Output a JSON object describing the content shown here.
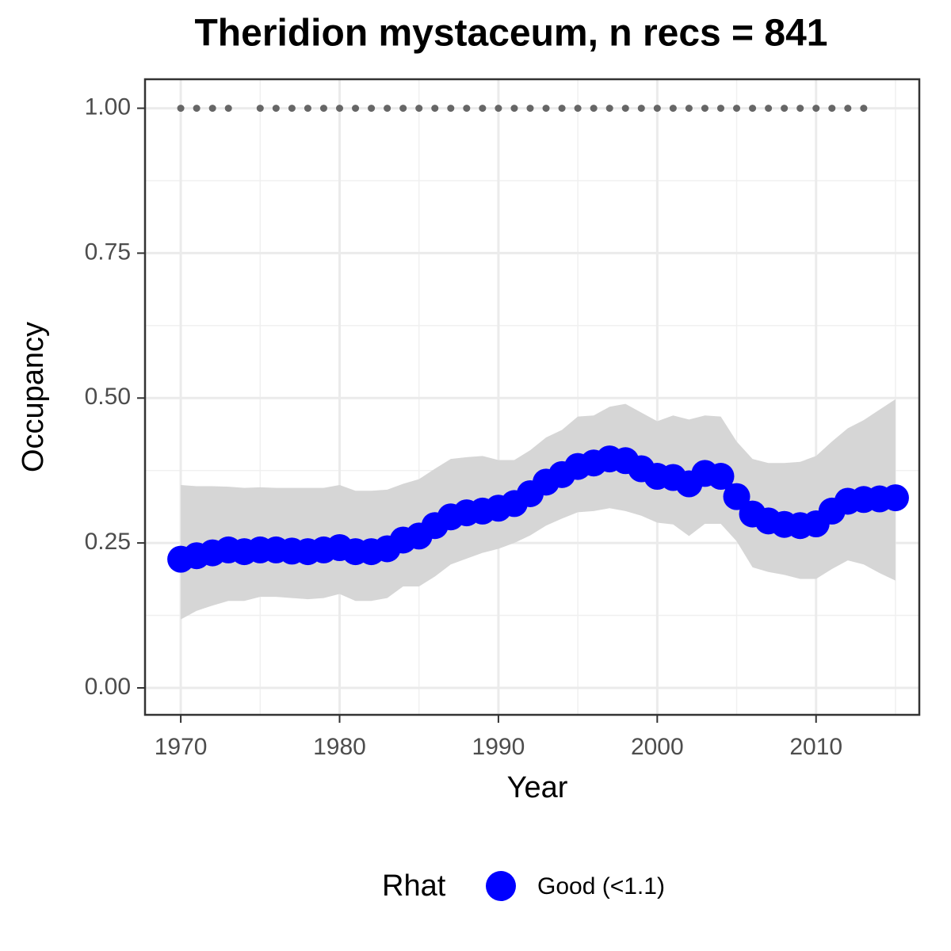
{
  "chart_data": {
    "type": "line",
    "title": "Theridion mystaceum, n recs = 841",
    "x_label": "Year",
    "y_label": "Occupancy",
    "legend_title": "Rhat",
    "legend_position": "bottom",
    "x": [
      1970,
      1971,
      1972,
      1973,
      1974,
      1975,
      1976,
      1977,
      1978,
      1979,
      1980,
      1981,
      1982,
      1983,
      1984,
      1985,
      1986,
      1987,
      1988,
      1989,
      1990,
      1991,
      1992,
      1993,
      1994,
      1995,
      1996,
      1997,
      1998,
      1999,
      2000,
      2001,
      2002,
      2003,
      2004,
      2005,
      2006,
      2007,
      2008,
      2009,
      2010,
      2011,
      2012,
      2013,
      2014,
      2015
    ],
    "series": [
      {
        "name": "Good (<1.1)",
        "color": "#0000ff",
        "values": [
          0.222,
          0.228,
          0.233,
          0.238,
          0.235,
          0.238,
          0.238,
          0.236,
          0.235,
          0.238,
          0.242,
          0.235,
          0.235,
          0.24,
          0.255,
          0.262,
          0.28,
          0.295,
          0.302,
          0.305,
          0.31,
          0.318,
          0.335,
          0.355,
          0.368,
          0.382,
          0.388,
          0.395,
          0.392,
          0.378,
          0.365,
          0.363,
          0.352,
          0.37,
          0.365,
          0.33,
          0.3,
          0.288,
          0.282,
          0.28,
          0.283,
          0.305,
          0.322,
          0.325,
          0.326,
          0.328
        ],
        "upper": [
          0.35,
          0.348,
          0.348,
          0.347,
          0.345,
          0.346,
          0.345,
          0.345,
          0.345,
          0.345,
          0.35,
          0.34,
          0.34,
          0.342,
          0.352,
          0.36,
          0.378,
          0.395,
          0.398,
          0.4,
          0.393,
          0.393,
          0.41,
          0.432,
          0.445,
          0.468,
          0.47,
          0.485,
          0.49,
          0.475,
          0.46,
          0.47,
          0.463,
          0.47,
          0.468,
          0.425,
          0.395,
          0.388,
          0.388,
          0.39,
          0.4,
          0.425,
          0.448,
          0.462,
          0.48,
          0.498
        ],
        "lower": [
          0.118,
          0.133,
          0.142,
          0.15,
          0.15,
          0.157,
          0.157,
          0.155,
          0.153,
          0.155,
          0.162,
          0.15,
          0.15,
          0.155,
          0.175,
          0.175,
          0.192,
          0.213,
          0.223,
          0.233,
          0.24,
          0.25,
          0.263,
          0.28,
          0.292,
          0.303,
          0.305,
          0.31,
          0.305,
          0.297,
          0.285,
          0.282,
          0.262,
          0.283,
          0.283,
          0.253,
          0.208,
          0.2,
          0.195,
          0.188,
          0.188,
          0.205,
          0.22,
          0.213,
          0.198,
          0.185
        ]
      }
    ],
    "band_color": "#d6d6d6",
    "record_color": "#666666",
    "record_x": [
      1970,
      1971,
      1972,
      1973,
      1975,
      1976,
      1977,
      1978,
      1979,
      1980,
      1981,
      1982,
      1983,
      1984,
      1985,
      1986,
      1987,
      1988,
      1989,
      1990,
      1991,
      1992,
      1993,
      1994,
      1995,
      1996,
      1997,
      1998,
      1999,
      2000,
      2001,
      2002,
      2003,
      2004,
      2005,
      2006,
      2007,
      2008,
      2009,
      2010,
      2011,
      2012,
      2013
    ],
    "record_values": [
      1,
      1,
      1,
      1,
      1,
      1,
      1,
      1,
      1,
      1,
      1,
      1,
      1,
      1,
      1,
      1,
      1,
      1,
      1,
      1,
      1,
      1,
      1,
      1,
      1,
      1,
      1,
      1,
      1,
      1,
      1,
      1,
      1,
      1,
      1,
      1,
      1,
      1,
      1,
      1,
      1,
      1,
      1
    ],
    "xlim": [
      1967.75,
      2016.5
    ],
    "xticks": [
      1970,
      1980,
      1990,
      2000,
      2010
    ],
    "ylim": [
      -0.0465,
      1.05
    ],
    "yticks": [
      {
        "value": 0,
        "label": "0.00"
      },
      {
        "value": 0.25,
        "label": "0.25"
      },
      {
        "value": 0.5,
        "label": "0.50"
      },
      {
        "value": 0.75,
        "label": "0.75"
      },
      {
        "value": 1,
        "label": "1.00"
      }
    ],
    "grid": true
  }
}
